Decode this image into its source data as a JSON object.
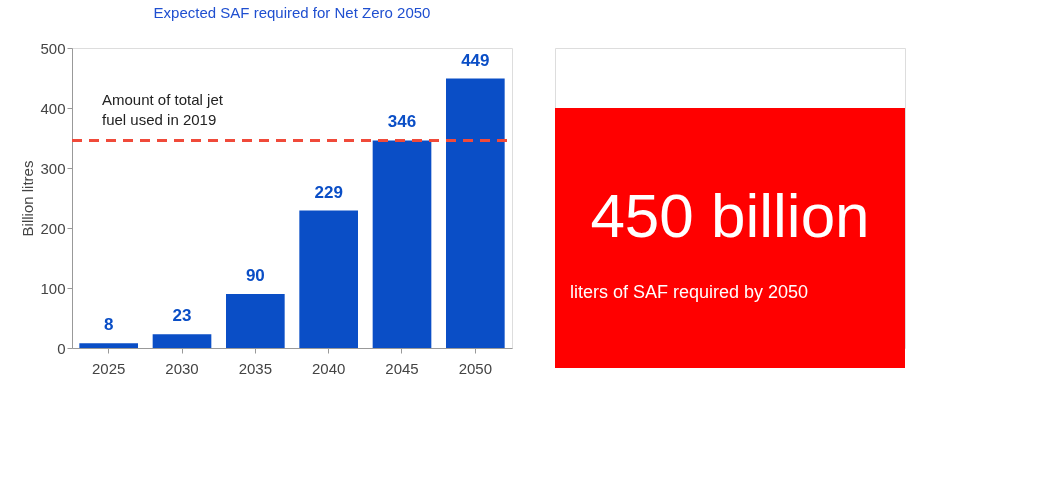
{
  "chart_data": [
    {
      "type": "bar",
      "title": "Expected SAF required for Net Zero 2050",
      "ylabel": "Billion litres",
      "categories": [
        "2025",
        "2030",
        "2035",
        "2040",
        "2045",
        "2050"
      ],
      "series": [
        {
          "color": "#0a4ec6",
          "values": [
            8,
            23,
            90,
            229,
            346,
            449
          ]
        }
      ],
      "ylim": [
        0,
        500
      ],
      "yticks": [
        0,
        100,
        200,
        300,
        400,
        500
      ],
      "grid": false,
      "data_labels": true,
      "ref_lines": [
        {
          "axis": "y",
          "value": 346,
          "color": "#f04a3a",
          "line_style": "dashed"
        }
      ],
      "annotations": [
        {
          "text": "Amount of total jet\nfuel used in 2019",
          "y": 346
        }
      ]
    },
    {
      "type": "other",
      "color": "#ff0000",
      "annotations": [
        "450 billion",
        "liters of SAF required by 2050"
      ]
    }
  ]
}
